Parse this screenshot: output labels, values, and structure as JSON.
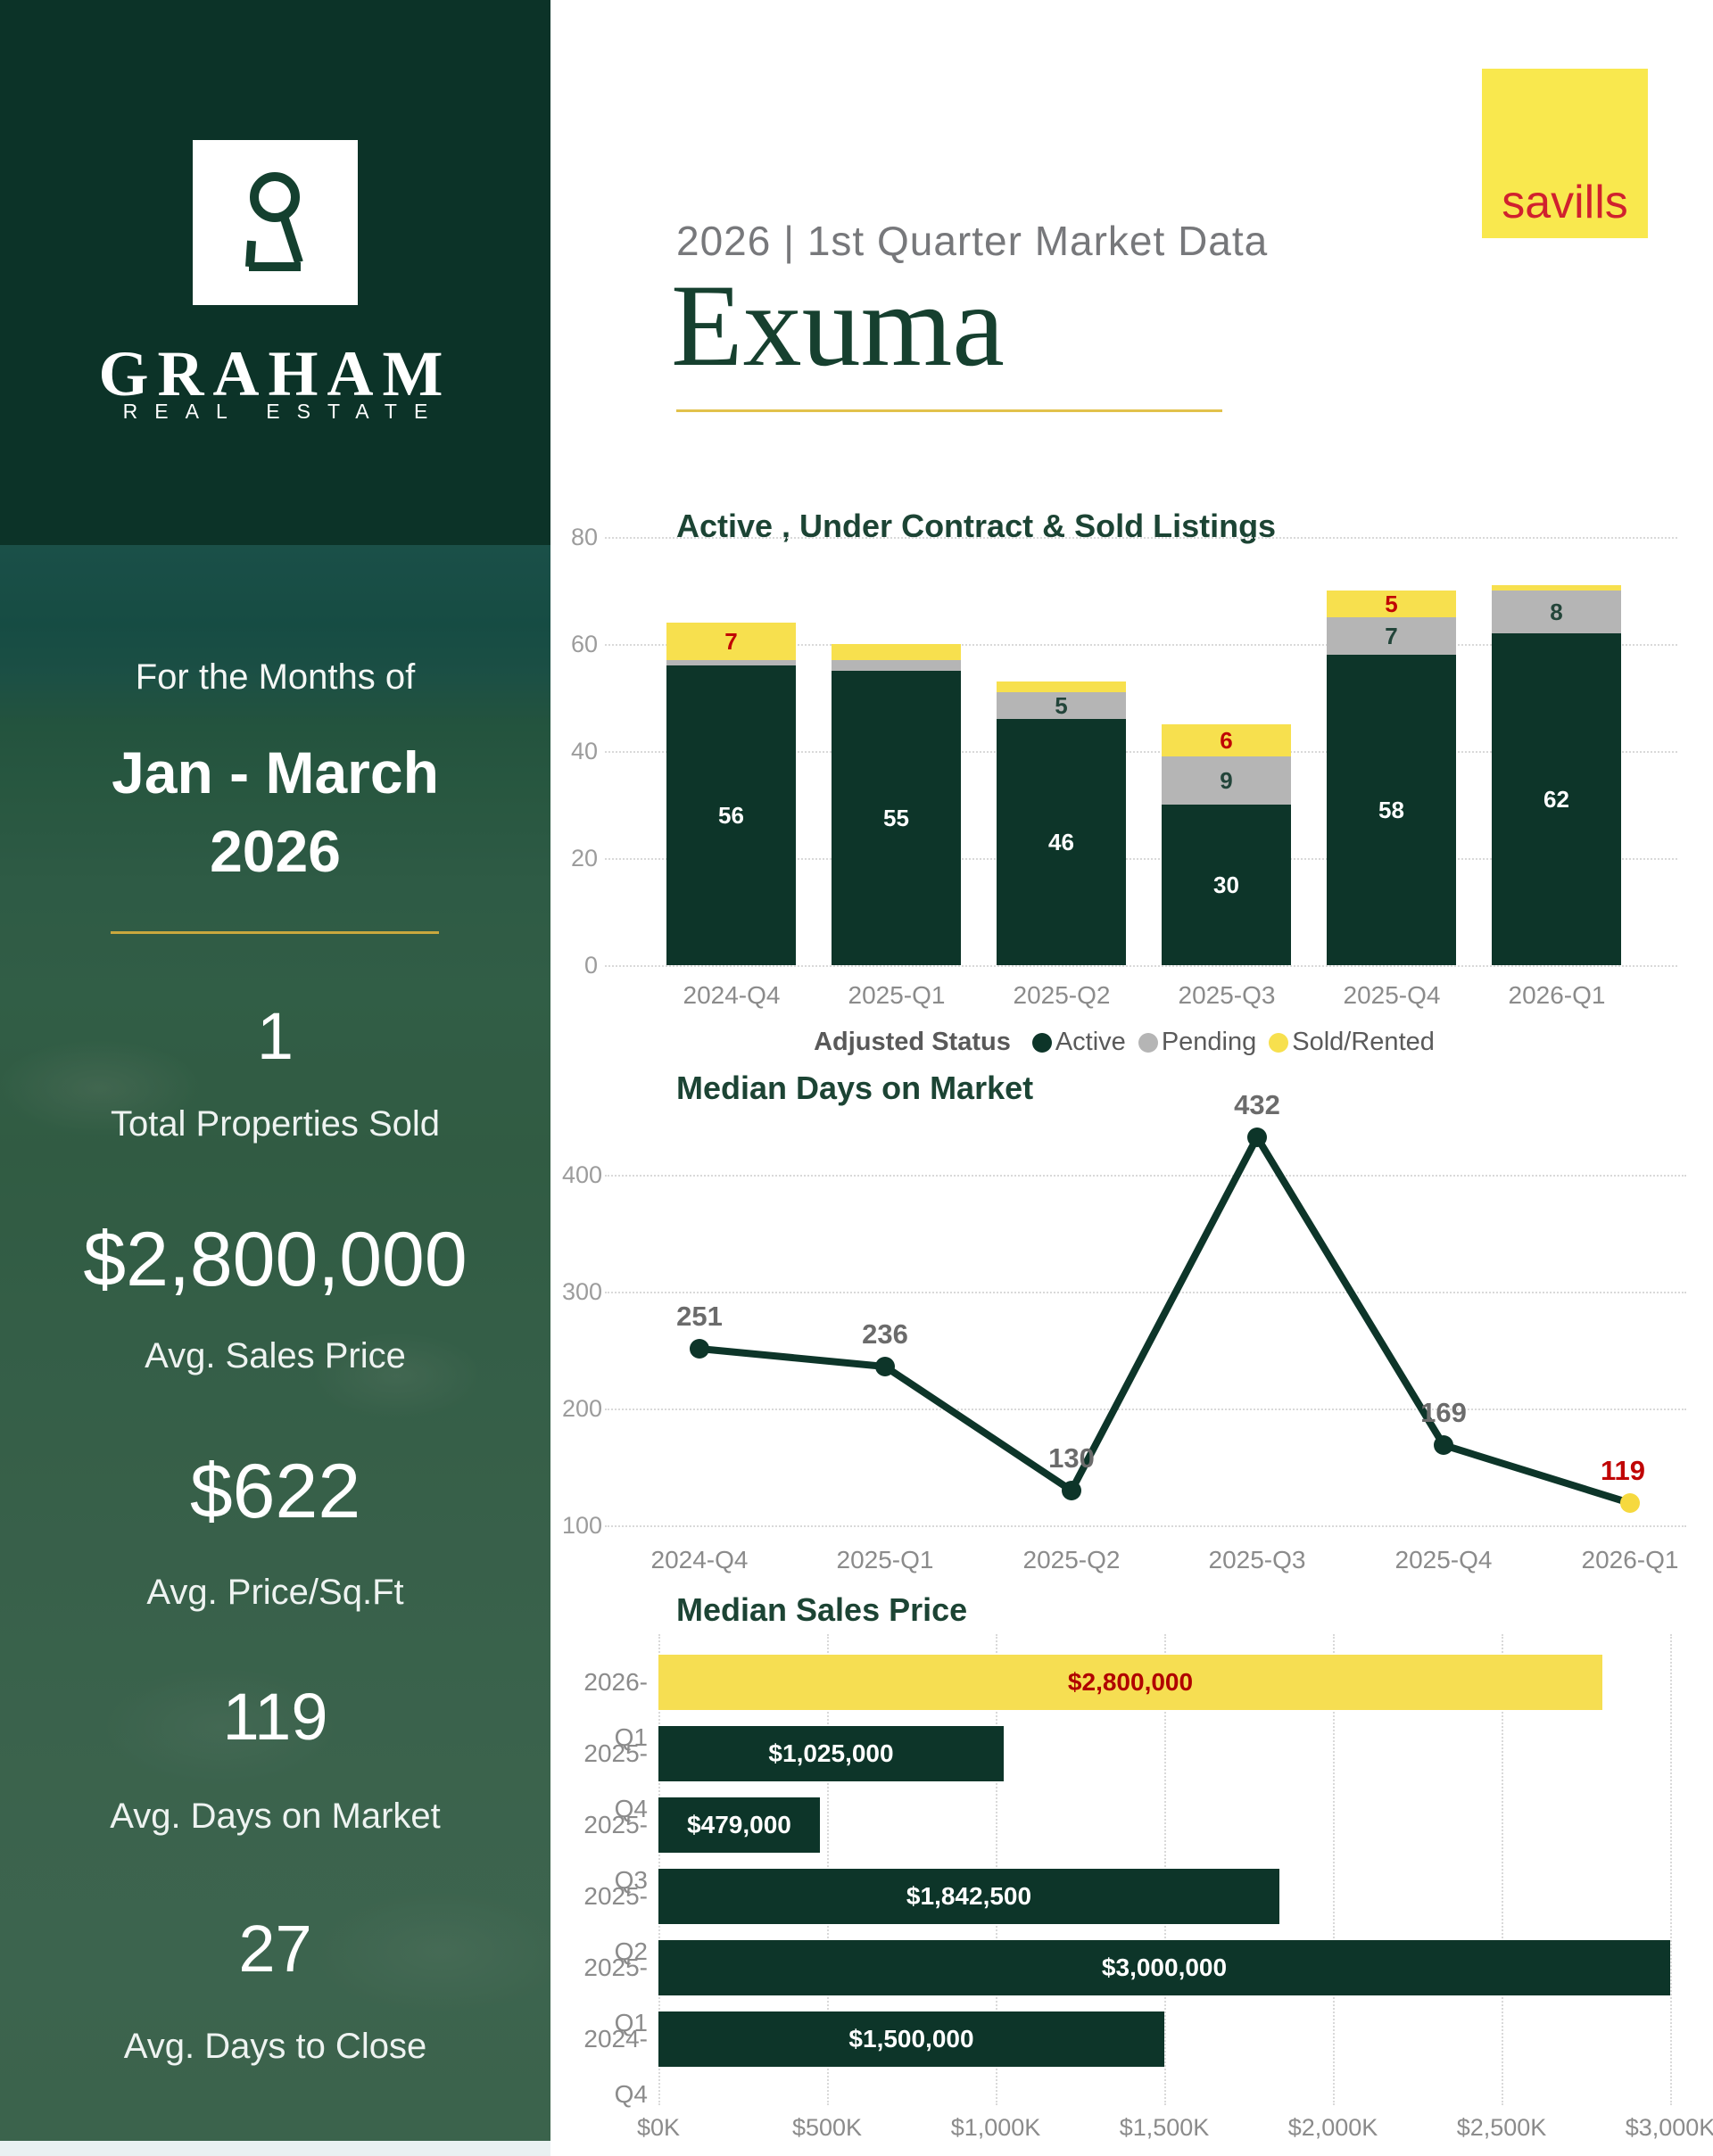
{
  "header": {
    "subtitle": "2026 | 1st  Quarter Market Data",
    "title": "Exuma",
    "brand": "savills",
    "accent_underline_color": "#e2c14b",
    "brand_bg_color": "#f9e84e",
    "brand_text_color": "#d0212e"
  },
  "sidebar": {
    "logo": {
      "name": "GRAHAM",
      "sub": "REAL ESTATE",
      "icon": "keyhole-icon"
    },
    "period_label": "For the Months of",
    "period_line1": "Jan - March",
    "period_line2": "2026",
    "stats": [
      {
        "value": "1",
        "label": "Total Properties Sold"
      },
      {
        "value": "$2,800,000",
        "label": "Avg. Sales Price"
      },
      {
        "value": "$622",
        "label": "Avg. Price/Sq.Ft"
      },
      {
        "value": "119",
        "label": "Avg. Days on Market"
      },
      {
        "value": "27",
        "label": "Avg. Days to Close"
      }
    ]
  },
  "colors": {
    "dark_green": "#0d3529",
    "sidebar_green": "#0c3328",
    "chart_title_green": "#1c4434",
    "yellow": "#f7e04e",
    "gray_segment": "#b5b5b5",
    "red_label": "#c00505",
    "axis_gray": "#9c9c9c"
  },
  "chart_data": [
    {
      "type": "stacked-bar",
      "title": "Active , Under Contract & Sold Listings",
      "legend_title": "Adjusted Status",
      "legend_position": "bottom-center",
      "grid": true,
      "categories": [
        "2024-Q4",
        "2025-Q1",
        "2025-Q2",
        "2025-Q3",
        "2025-Q4",
        "2026-Q1"
      ],
      "series": [
        {
          "name": "Active",
          "color": "#0d3529",
          "label_color": "#ffffff",
          "values": [
            56,
            55,
            46,
            30,
            58,
            62
          ]
        },
        {
          "name": "Pending",
          "color": "#b5b5b5",
          "label_color": "#23453a",
          "values": [
            1,
            2,
            5,
            9,
            7,
            8
          ]
        },
        {
          "name": "Sold/Rented",
          "color": "#f7e04e",
          "label_color": "#c00505",
          "values": [
            7,
            3,
            2,
            6,
            5,
            1
          ]
        }
      ],
      "ylim": [
        0,
        80
      ],
      "yticks": [
        0,
        20,
        40,
        60,
        80
      ],
      "min_label_value": 5
    },
    {
      "type": "line",
      "title": "Median Days on Market",
      "grid": true,
      "x": [
        "2024-Q4",
        "2025-Q1",
        "2025-Q2",
        "2025-Q3",
        "2025-Q4",
        "2026-Q1"
      ],
      "values": [
        251,
        236,
        130,
        432,
        169,
        119
      ],
      "yticks": [
        100,
        200,
        300,
        400
      ],
      "ylim": [
        100,
        450
      ],
      "line_color": "#0d3529",
      "marker_color": "#0d3529",
      "last_marker_color": "#f6d93f",
      "label_color": "#6b6b6b",
      "last_label_color": "#c00505"
    },
    {
      "type": "hbar",
      "title": "Median Sales Price",
      "grid": true,
      "categories": [
        "2026-Q1",
        "2025-Q4",
        "2025-Q3",
        "2025-Q2",
        "2025-Q1",
        "2024-Q4"
      ],
      "values": [
        2800000,
        1025000,
        479000,
        1842500,
        3000000,
        1500000
      ],
      "value_labels": [
        "$2,800,000",
        "$1,025,000",
        "$479,000",
        "$1,842,500",
        "$3,000,000",
        "$1,500,000"
      ],
      "bar_colors": [
        "#f6de52",
        "#0d3529",
        "#0d3529",
        "#0d3529",
        "#0d3529",
        "#0d3529"
      ],
      "value_label_colors": [
        "#b00000",
        "#ffffff",
        "#ffffff",
        "#ffffff",
        "#ffffff",
        "#ffffff"
      ],
      "xticks": [
        "$0K",
        "$500K",
        "$1,000K",
        "$1,500K",
        "$2,000K",
        "$2,500K",
        "$3,000K"
      ],
      "xtick_values": [
        0,
        500,
        1000,
        1500,
        2000,
        2500,
        3000
      ],
      "xlim": [
        0,
        3000
      ]
    }
  ]
}
